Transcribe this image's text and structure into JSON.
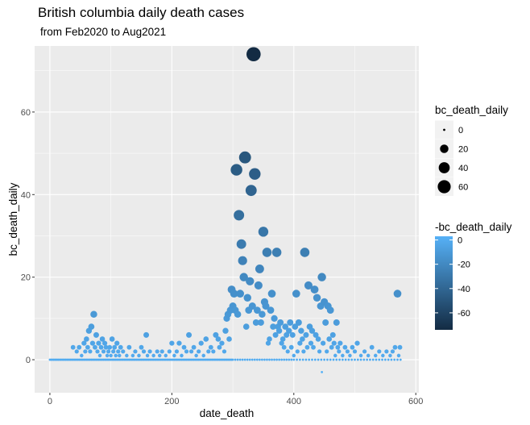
{
  "title": "British columbia daily death cases",
  "subtitle": "from Feb2020 to Aug2021",
  "chart_data": {
    "type": "scatter",
    "xlabel": "date_death",
    "ylabel": "bc_death_daily",
    "xlim": [
      -25,
      605
    ],
    "ylim": [
      -8,
      76
    ],
    "x_ticks": [
      0,
      200,
      400,
      600
    ],
    "y_ticks": [
      0,
      20,
      40,
      60
    ],
    "grid": true,
    "legend_position": "right",
    "size_legend": {
      "title": "bc_death_daily",
      "values": [
        0,
        20,
        40,
        60
      ]
    },
    "color_legend": {
      "title": "-bc_death_daily",
      "values": [
        0,
        -20,
        -40,
        -60
      ],
      "range": [
        -74,
        3
      ],
      "low_color": "#132B43",
      "high_color": "#56B1F7"
    },
    "points": [
      [
        0,
        0
      ],
      [
        2,
        0
      ],
      [
        4,
        0
      ],
      [
        6,
        0
      ],
      [
        8,
        0
      ],
      [
        10,
        0
      ],
      [
        12,
        0
      ],
      [
        14,
        0
      ],
      [
        16,
        0
      ],
      [
        18,
        0
      ],
      [
        20,
        0
      ],
      [
        22,
        0
      ],
      [
        24,
        0
      ],
      [
        26,
        0
      ],
      [
        28,
        0
      ],
      [
        30,
        0
      ],
      [
        32,
        0
      ],
      [
        34,
        0
      ],
      [
        36,
        0
      ],
      [
        38,
        0
      ],
      [
        40,
        0
      ],
      [
        42,
        0
      ],
      [
        44,
        0
      ],
      [
        46,
        0
      ],
      [
        48,
        0
      ],
      [
        50,
        0
      ],
      [
        52,
        0
      ],
      [
        54,
        0
      ],
      [
        56,
        0
      ],
      [
        58,
        0
      ],
      [
        60,
        0
      ],
      [
        62,
        0
      ],
      [
        64,
        0
      ],
      [
        66,
        0
      ],
      [
        68,
        0
      ],
      [
        70,
        0
      ],
      [
        72,
        0
      ],
      [
        74,
        0
      ],
      [
        76,
        0
      ],
      [
        78,
        0
      ],
      [
        80,
        0
      ],
      [
        82,
        0
      ],
      [
        84,
        0
      ],
      [
        86,
        0
      ],
      [
        88,
        0
      ],
      [
        90,
        0
      ],
      [
        92,
        0
      ],
      [
        94,
        0
      ],
      [
        96,
        0
      ],
      [
        98,
        0
      ],
      [
        100,
        0
      ],
      [
        102,
        0
      ],
      [
        104,
        0
      ],
      [
        106,
        0
      ],
      [
        108,
        0
      ],
      [
        110,
        0
      ],
      [
        112,
        0
      ],
      [
        114,
        0
      ],
      [
        116,
        0
      ],
      [
        118,
        0
      ],
      [
        120,
        0
      ],
      [
        122,
        0
      ],
      [
        124,
        0
      ],
      [
        126,
        0
      ],
      [
        128,
        0
      ],
      [
        130,
        0
      ],
      [
        132,
        0
      ],
      [
        134,
        0
      ],
      [
        136,
        0
      ],
      [
        138,
        0
      ],
      [
        140,
        0
      ],
      [
        142,
        0
      ],
      [
        144,
        0
      ],
      [
        146,
        0
      ],
      [
        148,
        0
      ],
      [
        150,
        0
      ],
      [
        152,
        0
      ],
      [
        154,
        0
      ],
      [
        156,
        0
      ],
      [
        158,
        0
      ],
      [
        160,
        0
      ],
      [
        162,
        0
      ],
      [
        164,
        0
      ],
      [
        166,
        0
      ],
      [
        168,
        0
      ],
      [
        170,
        0
      ],
      [
        172,
        0
      ],
      [
        174,
        0
      ],
      [
        176,
        0
      ],
      [
        178,
        0
      ],
      [
        180,
        0
      ],
      [
        182,
        0
      ],
      [
        184,
        0
      ],
      [
        186,
        0
      ],
      [
        188,
        0
      ],
      [
        190,
        0
      ],
      [
        192,
        0
      ],
      [
        194,
        0
      ],
      [
        196,
        0
      ],
      [
        198,
        0
      ],
      [
        200,
        0
      ],
      [
        202,
        0
      ],
      [
        204,
        0
      ],
      [
        206,
        0
      ],
      [
        208,
        0
      ],
      [
        210,
        0
      ],
      [
        212,
        0
      ],
      [
        214,
        0
      ],
      [
        216,
        0
      ],
      [
        218,
        0
      ],
      [
        220,
        0
      ],
      [
        222,
        0
      ],
      [
        224,
        0
      ],
      [
        226,
        0
      ],
      [
        228,
        0
      ],
      [
        230,
        0
      ],
      [
        232,
        0
      ],
      [
        234,
        0
      ],
      [
        236,
        0
      ],
      [
        238,
        0
      ],
      [
        240,
        0
      ],
      [
        242,
        0
      ],
      [
        244,
        0
      ],
      [
        246,
        0
      ],
      [
        248,
        0
      ],
      [
        250,
        0
      ],
      [
        252,
        0
      ],
      [
        254,
        0
      ],
      [
        256,
        0
      ],
      [
        258,
        0
      ],
      [
        260,
        0
      ],
      [
        262,
        0
      ],
      [
        264,
        0
      ],
      [
        266,
        0
      ],
      [
        268,
        0
      ],
      [
        270,
        0
      ],
      [
        272,
        0
      ],
      [
        274,
        0
      ],
      [
        276,
        0
      ],
      [
        278,
        0
      ],
      [
        280,
        0
      ],
      [
        282,
        0
      ],
      [
        284,
        0
      ],
      [
        286,
        0
      ],
      [
        288,
        0
      ],
      [
        290,
        0
      ],
      [
        292,
        0
      ],
      [
        294,
        0
      ],
      [
        296,
        0
      ],
      [
        298,
        0
      ],
      [
        300,
        0
      ],
      [
        304,
        0
      ],
      [
        308,
        0
      ],
      [
        312,
        0
      ],
      [
        316,
        0
      ],
      [
        320,
        0
      ],
      [
        324,
        0
      ],
      [
        328,
        0
      ],
      [
        332,
        0
      ],
      [
        336,
        0
      ],
      [
        340,
        0
      ],
      [
        344,
        0
      ],
      [
        348,
        0
      ],
      [
        352,
        0
      ],
      [
        356,
        0
      ],
      [
        360,
        0
      ],
      [
        364,
        0
      ],
      [
        368,
        0
      ],
      [
        372,
        0
      ],
      [
        376,
        0
      ],
      [
        380,
        0
      ],
      [
        384,
        0
      ],
      [
        388,
        0
      ],
      [
        392,
        0
      ],
      [
        396,
        0
      ],
      [
        400,
        0
      ],
      [
        405,
        0
      ],
      [
        410,
        0
      ],
      [
        415,
        0
      ],
      [
        420,
        0
      ],
      [
        425,
        0
      ],
      [
        430,
        0
      ],
      [
        435,
        0
      ],
      [
        440,
        0
      ],
      [
        445,
        0
      ],
      [
        450,
        0
      ],
      [
        455,
        0
      ],
      [
        460,
        0
      ],
      [
        465,
        0
      ],
      [
        470,
        0
      ],
      [
        475,
        0
      ],
      [
        480,
        0
      ],
      [
        485,
        0
      ],
      [
        490,
        0
      ],
      [
        495,
        0
      ],
      [
        500,
        0
      ],
      [
        505,
        0
      ],
      [
        510,
        0
      ],
      [
        515,
        0
      ],
      [
        520,
        0
      ],
      [
        525,
        0
      ],
      [
        530,
        0
      ],
      [
        535,
        0
      ],
      [
        540,
        0
      ],
      [
        545,
        0
      ],
      [
        550,
        0
      ],
      [
        555,
        0
      ],
      [
        560,
        0
      ],
      [
        565,
        0
      ],
      [
        570,
        0
      ],
      [
        575,
        0
      ],
      [
        38,
        3
      ],
      [
        44,
        2
      ],
      [
        48,
        3
      ],
      [
        52,
        1
      ],
      [
        56,
        4
      ],
      [
        58,
        2
      ],
      [
        60,
        5
      ],
      [
        62,
        3
      ],
      [
        64,
        7
      ],
      [
        66,
        2
      ],
      [
        68,
        8
      ],
      [
        70,
        4
      ],
      [
        72,
        11
      ],
      [
        74,
        3
      ],
      [
        76,
        6
      ],
      [
        78,
        2
      ],
      [
        80,
        4
      ],
      [
        82,
        1
      ],
      [
        84,
        3
      ],
      [
        86,
        5
      ],
      [
        88,
        2
      ],
      [
        90,
        4
      ],
      [
        92,
        3
      ],
      [
        94,
        1
      ],
      [
        96,
        2
      ],
      [
        98,
        3
      ],
      [
        100,
        1
      ],
      [
        102,
        5
      ],
      [
        104,
        2
      ],
      [
        106,
        3
      ],
      [
        108,
        1
      ],
      [
        110,
        4
      ],
      [
        112,
        2
      ],
      [
        114,
        1
      ],
      [
        116,
        3
      ],
      [
        120,
        2
      ],
      [
        126,
        1
      ],
      [
        130,
        3
      ],
      [
        136,
        1
      ],
      [
        140,
        2
      ],
      [
        146,
        1
      ],
      [
        150,
        3
      ],
      [
        154,
        2
      ],
      [
        158,
        6
      ],
      [
        160,
        1
      ],
      [
        164,
        2
      ],
      [
        170,
        1
      ],
      [
        176,
        2
      ],
      [
        180,
        1
      ],
      [
        184,
        2
      ],
      [
        190,
        1
      ],
      [
        196,
        2
      ],
      [
        200,
        4
      ],
      [
        204,
        1
      ],
      [
        208,
        2
      ],
      [
        212,
        4
      ],
      [
        216,
        1
      ],
      [
        220,
        3
      ],
      [
        224,
        2
      ],
      [
        228,
        6
      ],
      [
        232,
        2
      ],
      [
        236,
        3
      ],
      [
        240,
        1
      ],
      [
        244,
        2
      ],
      [
        248,
        4
      ],
      [
        252,
        1
      ],
      [
        256,
        5
      ],
      [
        260,
        2
      ],
      [
        264,
        3
      ],
      [
        268,
        2
      ],
      [
        272,
        6
      ],
      [
        276,
        5
      ],
      [
        278,
        3
      ],
      [
        282,
        4
      ],
      [
        286,
        2
      ],
      [
        288,
        7
      ],
      [
        290,
        10
      ],
      [
        292,
        11
      ],
      [
        294,
        5
      ],
      [
        296,
        12
      ],
      [
        298,
        17
      ],
      [
        300,
        13
      ],
      [
        302,
        16
      ],
      [
        304,
        12
      ],
      [
        306,
        46
      ],
      [
        308,
        11
      ],
      [
        310,
        35
      ],
      [
        312,
        16
      ],
      [
        314,
        28
      ],
      [
        316,
        24
      ],
      [
        318,
        20
      ],
      [
        320,
        49
      ],
      [
        322,
        8
      ],
      [
        324,
        15
      ],
      [
        326,
        12
      ],
      [
        328,
        19
      ],
      [
        330,
        41
      ],
      [
        332,
        13
      ],
      [
        334,
        74
      ],
      [
        336,
        45
      ],
      [
        338,
        9
      ],
      [
        340,
        12
      ],
      [
        342,
        18
      ],
      [
        344,
        22
      ],
      [
        346,
        9
      ],
      [
        348,
        11
      ],
      [
        350,
        31
      ],
      [
        352,
        14
      ],
      [
        354,
        13
      ],
      [
        356,
        26
      ],
      [
        358,
        4
      ],
      [
        360,
        5
      ],
      [
        362,
        12
      ],
      [
        364,
        16
      ],
      [
        366,
        8
      ],
      [
        368,
        10
      ],
      [
        370,
        6
      ],
      [
        372,
        26
      ],
      [
        374,
        8
      ],
      [
        376,
        7
      ],
      [
        378,
        9
      ],
      [
        380,
        4
      ],
      [
        382,
        5
      ],
      [
        384,
        3
      ],
      [
        386,
        8
      ],
      [
        388,
        6
      ],
      [
        390,
        2
      ],
      [
        392,
        7
      ],
      [
        394,
        9
      ],
      [
        396,
        3
      ],
      [
        398,
        6
      ],
      [
        400,
        1
      ],
      [
        402,
        8
      ],
      [
        404,
        16
      ],
      [
        406,
        2
      ],
      [
        408,
        9
      ],
      [
        410,
        4
      ],
      [
        412,
        7
      ],
      [
        414,
        5
      ],
      [
        416,
        2
      ],
      [
        418,
        26
      ],
      [
        420,
        6
      ],
      [
        422,
        3
      ],
      [
        424,
        18
      ],
      [
        426,
        8
      ],
      [
        428,
        4
      ],
      [
        430,
        7
      ],
      [
        432,
        3
      ],
      [
        434,
        17
      ],
      [
        436,
        6
      ],
      [
        438,
        15
      ],
      [
        440,
        5
      ],
      [
        442,
        2
      ],
      [
        444,
        13
      ],
      [
        446,
        20
      ],
      [
        448,
        4
      ],
      [
        450,
        14
      ],
      [
        452,
        9
      ],
      [
        454,
        2
      ],
      [
        456,
        13
      ],
      [
        458,
        5
      ],
      [
        460,
        12
      ],
      [
        462,
        3
      ],
      [
        464,
        6
      ],
      [
        466,
        4
      ],
      [
        468,
        1
      ],
      [
        470,
        9
      ],
      [
        472,
        3
      ],
      [
        474,
        2
      ],
      [
        476,
        4
      ],
      [
        480,
        1
      ],
      [
        484,
        3
      ],
      [
        488,
        2
      ],
      [
        492,
        1
      ],
      [
        496,
        3
      ],
      [
        500,
        2
      ],
      [
        504,
        4
      ],
      [
        510,
        1
      ],
      [
        516,
        2
      ],
      [
        522,
        1
      ],
      [
        528,
        3
      ],
      [
        534,
        1
      ],
      [
        540,
        2
      ],
      [
        546,
        1
      ],
      [
        552,
        2
      ],
      [
        558,
        1
      ],
      [
        562,
        2
      ],
      [
        566,
        3
      ],
      [
        570,
        16
      ],
      [
        572,
        1
      ],
      [
        574,
        3
      ],
      [
        446,
        -3
      ]
    ]
  }
}
